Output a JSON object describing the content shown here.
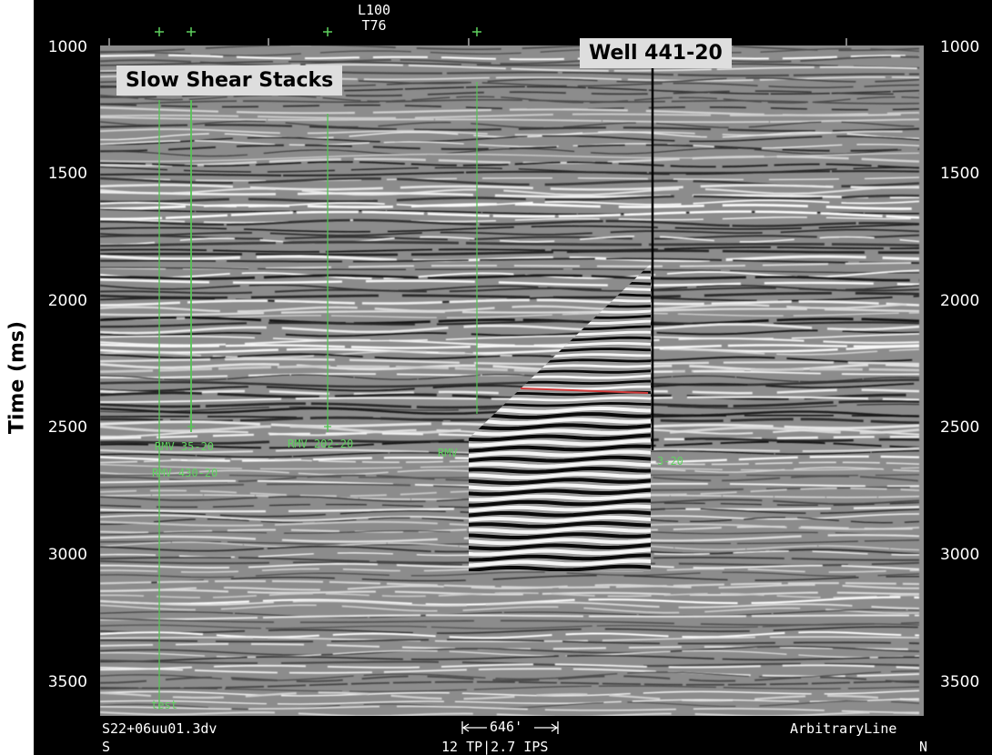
{
  "axis": {
    "ylabel": "Time (ms)",
    "ticks": [
      "1000",
      "1500",
      "2000",
      "2500",
      "3000",
      "3500"
    ]
  },
  "header": {
    "line1": "L100",
    "line2": "T76"
  },
  "callouts": {
    "stacks": "Slow Shear Stacks",
    "well": "Well 441-20"
  },
  "wells": [
    {
      "label": "RMV 35-20"
    },
    {
      "label": "RMV 430-20"
    },
    {
      "label": "RMV 202-20"
    },
    {
      "label": "RMV"
    },
    {
      "label": "test"
    },
    {
      "label": "3-20"
    }
  ],
  "footer": {
    "left_top": "S22+06uu01.3dv",
    "left_bottom": "S",
    "scale": "646'",
    "center_bottom": "12 TP|2.7 IPS",
    "right_top": "ArbitraryLine",
    "right_bottom": "N"
  },
  "colors": {
    "well_trace": "#55c455",
    "horizon": "#d23a3a"
  }
}
